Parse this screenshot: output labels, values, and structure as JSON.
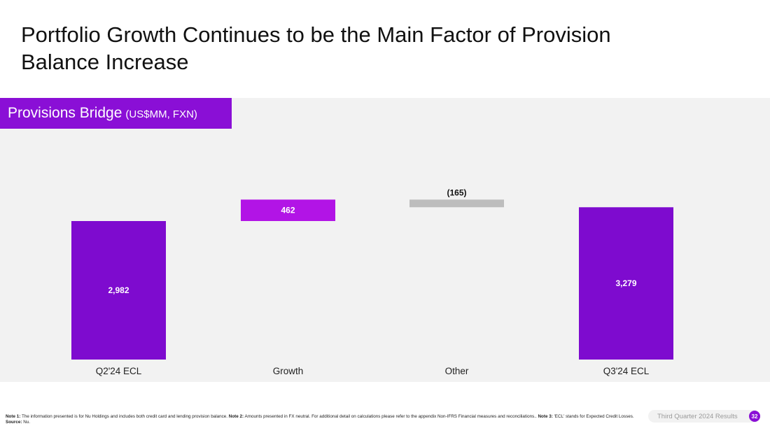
{
  "title": {
    "line1": "Portfolio Growth Continues to be the Main Factor of Provision",
    "line2": "Balance Increase"
  },
  "panel": {
    "title": "Provisions Bridge",
    "unit": "(US$MM, FXN)"
  },
  "colors": {
    "total_bar": "#7e0bcf",
    "increase_bar": "#b214e6",
    "decrease_bar": "#bdbdbd",
    "panel_bg": "#f2f2f2",
    "accent": "#8a0fd6"
  },
  "chart_data": {
    "type": "bar",
    "subtype": "waterfall",
    "categories": [
      "Q2'24 ECL",
      "Growth",
      "Other",
      "Q3'24 ECL"
    ],
    "values": [
      2982,
      462,
      -165,
      3279
    ],
    "labels": [
      "2,982",
      "462",
      "(165)",
      "3,279"
    ],
    "kinds": [
      "total",
      "increase",
      "decrease",
      "total"
    ],
    "title": "Provisions Bridge",
    "unit": "US$MM, FXN",
    "xlabel": "",
    "ylabel": "",
    "axis_visible": false,
    "grid": false
  },
  "footnote": {
    "note1_label": "Note 1:",
    "note1_text": " The information presented is for Nu Holdings and includes both credit card and lending provision balance. ",
    "note2_label": "Note 2:",
    "note2_text": " Amounts presented in FX neutral. For additional detail on calculations please refer to the appendix Non-IFRS Financial measures and reconciliations.. ",
    "note3_label": "Note 3:",
    "note3_text": " 'ECL' stands for Expected Credit Losses. ",
    "source_label": "Source:",
    "source_text": " Nu."
  },
  "footer": {
    "label": "Third Quarter 2024 Results",
    "page": "32"
  }
}
